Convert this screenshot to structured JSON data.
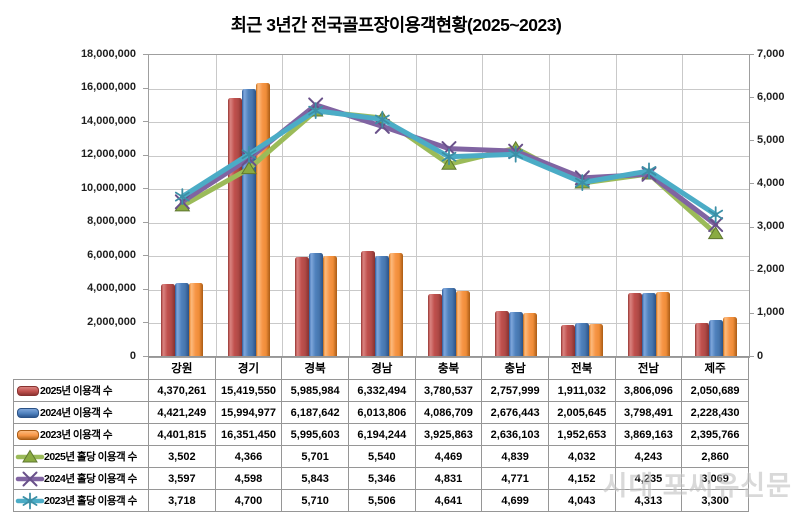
{
  "title": "최근 3년간 전국골프장이용객현황(2025~2023)",
  "watermark": "시대 포씨유신문",
  "chart_data": {
    "type": "bar+line combo with data table",
    "title": "최근 3년간 전국골프장이용객현황(2025~2023)",
    "categories": [
      "강원",
      "경기",
      "경북",
      "경남",
      "충북",
      "충남",
      "전북",
      "전남",
      "제주"
    ],
    "bar_series": [
      {
        "name": "2025년 이용객 수",
        "color": "#C0504D",
        "axis": "left",
        "values": [
          4370261,
          15419550,
          5985984,
          6332494,
          3780537,
          2757999,
          1911032,
          3806096,
          2050689
        ]
      },
      {
        "name": "2024년 이용객 수",
        "color": "#4F81BD",
        "axis": "left",
        "values": [
          4421249,
          15994977,
          6187642,
          6013806,
          4086709,
          2676443,
          2005645,
          3798491,
          2228430
        ]
      },
      {
        "name": "2023년 이용객 수",
        "color": "#F79646",
        "axis": "left",
        "values": [
          4401815,
          16351450,
          5995603,
          6194244,
          3925863,
          2636103,
          1952653,
          3869163,
          2395766
        ]
      }
    ],
    "line_series": [
      {
        "name": "2025년 홀당 이용객 수",
        "color": "#9BBB59",
        "marker": "triangle",
        "marker_color": "#8AAB41",
        "marker_edge": "#5f7730",
        "axis": "right",
        "values": [
          3502,
          4366,
          5701,
          5540,
          4469,
          4839,
          4032,
          4243,
          2860
        ]
      },
      {
        "name": "2024년 홀당 이용객 수",
        "color": "#8064A2",
        "marker": "x",
        "marker_color": "#69518a",
        "axis": "right",
        "values": [
          3597,
          4598,
          5843,
          5346,
          4831,
          4771,
          4152,
          4235,
          3069
        ]
      },
      {
        "name": "2023년 홀당 이용객 수",
        "color": "#4BACC6",
        "marker": "asterisk",
        "marker_color": "#3c8fa6",
        "axis": "right",
        "values": [
          3718,
          4700,
          5710,
          5506,
          4641,
          4699,
          4043,
          4313,
          3300
        ]
      }
    ],
    "left_axis": {
      "min": 0,
      "max": 18000000,
      "step": 2000000,
      "ticks": [
        "18,000,000",
        "16,000,000",
        "14,000,000",
        "12,000,000",
        "10,000,000",
        "8,000,000",
        "6,000,000",
        "4,000,000",
        "2,000,000",
        "0"
      ]
    },
    "right_axis": {
      "min": 0,
      "max": 7000,
      "step": 1000,
      "ticks": [
        "7,000",
        "6,000",
        "5,000",
        "4,000",
        "3,000",
        "2,000",
        "1,000",
        "0"
      ]
    },
    "grid": true,
    "legend_position": "data-table-left-column"
  }
}
